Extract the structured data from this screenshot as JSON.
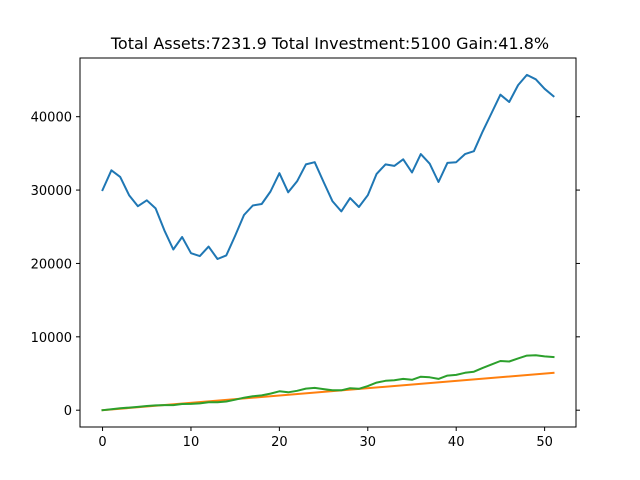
{
  "chart_data": {
    "type": "line",
    "title": "Total Assets:7231.9  Total Investment:5100  Gain:41.8%",
    "xlabel": "",
    "ylabel": "",
    "xlim": [
      -2.55,
      53.55
    ],
    "ylim": [
      -2290,
      48000
    ],
    "x_ticks": [
      0,
      10,
      20,
      30,
      40,
      50
    ],
    "y_ticks": [
      0,
      10000,
      20000,
      30000,
      40000
    ],
    "grid": false,
    "series": [
      {
        "color": "#1f77b4",
        "x": [
          0,
          1,
          2,
          3,
          4,
          5,
          6,
          7,
          8,
          9,
          10,
          11,
          12,
          13,
          14,
          15,
          16,
          17,
          18,
          19,
          20,
          21,
          22,
          23,
          24,
          25,
          26,
          27,
          28,
          29,
          30,
          31,
          32,
          33,
          34,
          35,
          36,
          37,
          38,
          39,
          40,
          41,
          42,
          43,
          44,
          45,
          46,
          47,
          48,
          49,
          50,
          51
        ],
        "values": [
          30000,
          32700,
          31800,
          29300,
          27800,
          28600,
          27500,
          24500,
          21900,
          23600,
          21400,
          21000,
          22300,
          20600,
          21100,
          23800,
          26600,
          27900,
          28100,
          29800,
          32300,
          29700,
          31200,
          33500,
          33800,
          31100,
          28500,
          27100,
          28900,
          27700,
          29300,
          32200,
          33500,
          33300,
          34200,
          32400,
          34900,
          33600,
          31100,
          33700,
          33800,
          34900,
          35300,
          38000,
          40500,
          43000,
          42000,
          44300,
          45700,
          45100,
          43800,
          42800
        ]
      },
      {
        "color": "#ff7f0e",
        "x": [
          0,
          51
        ],
        "values": [
          0,
          5100
        ]
      },
      {
        "color": "#2ca02c",
        "x": [
          0,
          1,
          2,
          3,
          4,
          5,
          6,
          7,
          8,
          9,
          10,
          11,
          12,
          13,
          14,
          15,
          16,
          17,
          18,
          19,
          20,
          21,
          22,
          23,
          24,
          25,
          26,
          27,
          28,
          29,
          30,
          31,
          32,
          33,
          34,
          35,
          36,
          37,
          38,
          39,
          40,
          41,
          42,
          43,
          44,
          45,
          46,
          47,
          48,
          49,
          50,
          51
        ],
        "values": [
          0,
          131,
          254,
          353,
          445,
          572,
          658,
          690,
          700,
          850,
          860,
          920,
          1070,
          1080,
          1180,
          1430,
          1700,
          1900,
          2020,
          2260,
          2580,
          2440,
          2640,
          2950,
          3040,
          2870,
          2730,
          2710,
          3000,
          2920,
          3280,
          3760,
          4000,
          4080,
          4260,
          4140,
          4570,
          4490,
          4270,
          4720,
          4810,
          5100,
          5250,
          5770,
          6240,
          6710,
          6640,
          7060,
          7440,
          7480,
          7330,
          7232
        ]
      }
    ]
  }
}
